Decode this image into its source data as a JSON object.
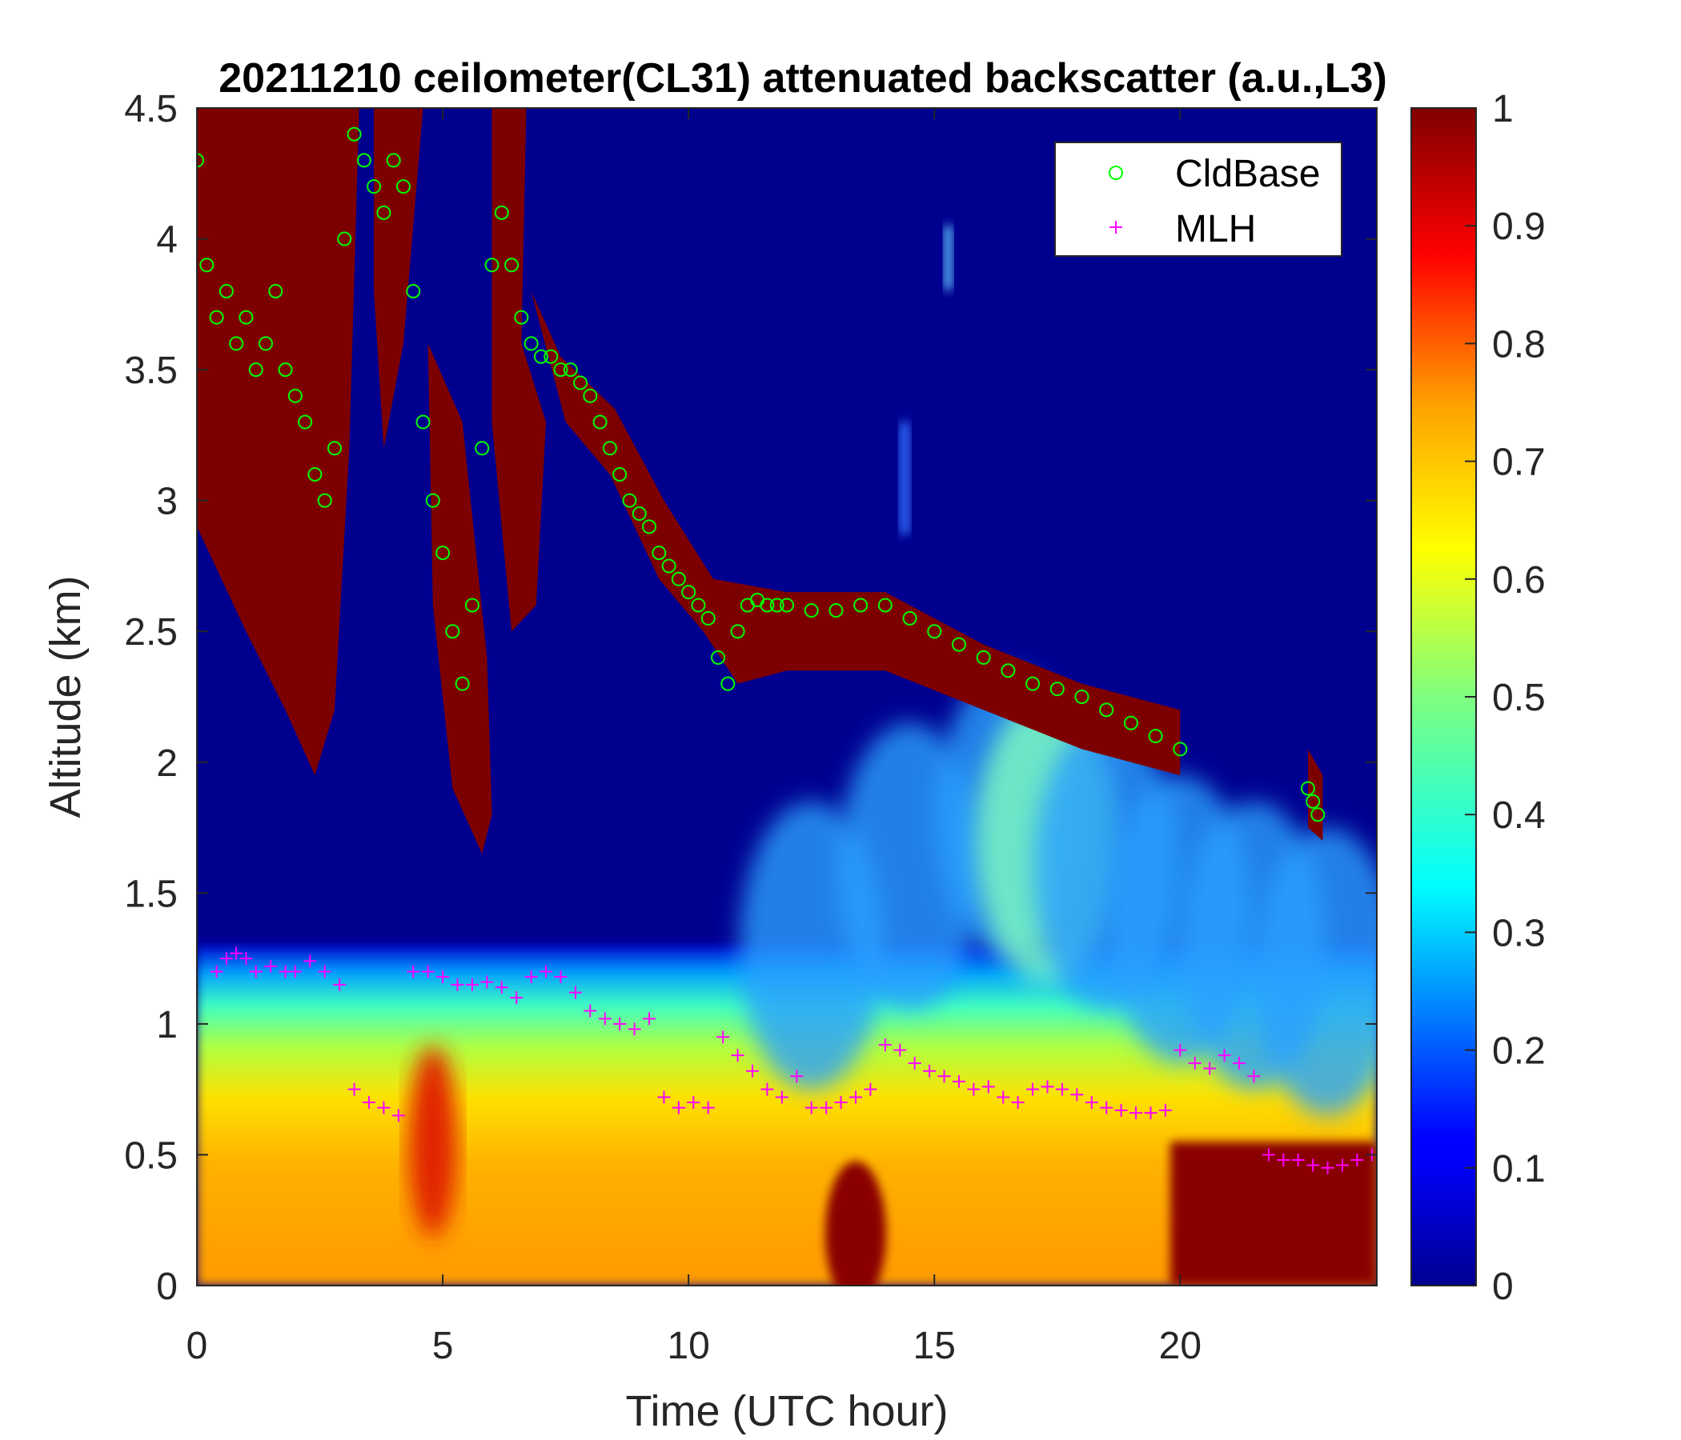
{
  "chart_data": {
    "type": "heatmap",
    "title": "20211210 ceilometer(CL31) attenuated backscatter (a.u.,L3)",
    "xlabel": "Time (UTC hour)",
    "ylabel": "Altitude (km)",
    "xlim": [
      0,
      24
    ],
    "ylim": [
      0,
      4.5
    ],
    "x_ticks": [
      0,
      5,
      10,
      15,
      20
    ],
    "x_tick_labels": [
      "0",
      "5",
      "10",
      "15",
      "20"
    ],
    "y_ticks": [
      0,
      0.5,
      1,
      1.5,
      2,
      2.5,
      3,
      3.5,
      4,
      4.5
    ],
    "y_tick_labels": [
      "0",
      "0.5",
      "1",
      "1.5",
      "2",
      "2.5",
      "3",
      "3.5",
      "4",
      "4.5"
    ],
    "colorbar": {
      "colormap": "jet",
      "range": [
        0,
        1
      ],
      "ticks": [
        0,
        0.1,
        0.2,
        0.3,
        0.4,
        0.5,
        0.6,
        0.7,
        0.8,
        0.9,
        1
      ],
      "tick_labels": [
        "0",
        "0.1",
        "0.2",
        "0.3",
        "0.4",
        "0.5",
        "0.6",
        "0.7",
        "0.8",
        "0.9",
        "1"
      ]
    },
    "background_value": 0,
    "legend": {
      "placement": "top-right",
      "entries": [
        {
          "label": "CldBase",
          "marker": "circle",
          "color": "#00ff00"
        },
        {
          "label": "MLH",
          "marker": "plus",
          "color": "#ff00ff"
        }
      ]
    },
    "series": [
      {
        "name": "CldBase",
        "marker": "circle",
        "color": "#00ff00",
        "x": [
          0,
          0.2,
          0.4,
          0.6,
          0.8,
          1.0,
          1.2,
          1.4,
          1.6,
          1.8,
          2.0,
          2.2,
          2.4,
          2.6,
          2.8,
          3.0,
          3.2,
          3.4,
          3.6,
          3.8,
          4.0,
          4.2,
          4.4,
          4.6,
          4.8,
          5.0,
          5.2,
          5.4,
          5.6,
          5.8,
          6.0,
          6.2,
          6.4,
          6.6,
          6.8,
          7.0,
          7.2,
          7.4,
          7.6,
          7.8,
          8.0,
          8.2,
          8.4,
          8.6,
          8.8,
          9.0,
          9.2,
          9.4,
          9.6,
          9.8,
          10.0,
          10.2,
          10.4,
          10.6,
          10.8,
          11.0,
          11.2,
          11.4,
          11.6,
          11.8,
          12.0,
          12.5,
          13.0,
          13.5,
          14.0,
          14.5,
          15.0,
          15.5,
          16.0,
          16.5,
          17.0,
          17.5,
          18.0,
          18.5,
          19.0,
          19.5,
          20.0,
          22.6,
          22.7,
          22.8
        ],
        "y": [
          4.3,
          3.9,
          3.7,
          3.8,
          3.6,
          3.7,
          3.5,
          3.6,
          3.8,
          3.5,
          3.4,
          3.3,
          3.1,
          3.0,
          3.2,
          4.0,
          4.4,
          4.3,
          4.2,
          4.1,
          4.3,
          4.2,
          3.8,
          3.3,
          3.0,
          2.8,
          2.5,
          2.3,
          2.6,
          3.2,
          3.9,
          4.1,
          3.9,
          3.7,
          3.6,
          3.55,
          3.55,
          3.5,
          3.5,
          3.45,
          3.4,
          3.3,
          3.2,
          3.1,
          3.0,
          2.95,
          2.9,
          2.8,
          2.75,
          2.7,
          2.65,
          2.6,
          2.55,
          2.4,
          2.3,
          2.5,
          2.6,
          2.62,
          2.6,
          2.6,
          2.6,
          2.58,
          2.58,
          2.6,
          2.6,
          2.55,
          2.5,
          2.45,
          2.4,
          2.35,
          2.3,
          2.28,
          2.25,
          2.2,
          2.15,
          2.1,
          2.05,
          1.9,
          1.85,
          1.8
        ]
      },
      {
        "name": "MLH",
        "marker": "plus",
        "color": "#ff00ff",
        "x": [
          0.4,
          0.6,
          0.8,
          1.0,
          1.2,
          1.5,
          1.8,
          2.0,
          2.3,
          2.6,
          2.9,
          3.2,
          3.5,
          3.8,
          4.1,
          4.4,
          4.7,
          5.0,
          5.3,
          5.6,
          5.9,
          6.2,
          6.5,
          6.8,
          7.1,
          7.4,
          7.7,
          8.0,
          8.3,
          8.6,
          8.9,
          9.2,
          9.5,
          9.8,
          10.1,
          10.4,
          10.7,
          11.0,
          11.3,
          11.6,
          11.9,
          12.2,
          12.5,
          12.8,
          13.1,
          13.4,
          13.7,
          14.0,
          14.3,
          14.6,
          14.9,
          15.2,
          15.5,
          15.8,
          16.1,
          16.4,
          16.7,
          17.0,
          17.3,
          17.6,
          17.9,
          18.2,
          18.5,
          18.8,
          19.1,
          19.4,
          19.7,
          20.0,
          20.3,
          20.6,
          20.9,
          21.2,
          21.5,
          21.8,
          22.1,
          22.4,
          22.7,
          23.0,
          23.3,
          23.6,
          23.9
        ],
        "y": [
          1.2,
          1.25,
          1.27,
          1.25,
          1.2,
          1.22,
          1.2,
          1.2,
          1.24,
          1.2,
          1.15,
          0.75,
          0.7,
          0.68,
          0.65,
          1.2,
          1.2,
          1.18,
          1.15,
          1.15,
          1.16,
          1.14,
          1.1,
          1.18,
          1.2,
          1.18,
          1.12,
          1.05,
          1.02,
          1.0,
          0.98,
          1.02,
          0.72,
          0.68,
          0.7,
          0.68,
          0.95,
          0.88,
          0.82,
          0.75,
          0.72,
          0.8,
          0.68,
          0.68,
          0.7,
          0.72,
          0.75,
          0.92,
          0.9,
          0.85,
          0.82,
          0.8,
          0.78,
          0.75,
          0.76,
          0.72,
          0.7,
          0.75,
          0.76,
          0.75,
          0.73,
          0.7,
          0.68,
          0.67,
          0.66,
          0.66,
          0.67,
          0.9,
          0.85,
          0.83,
          0.88,
          0.85,
          0.8,
          0.5,
          0.48,
          0.48,
          0.46,
          0.45,
          0.46,
          0.48,
          0.5
        ]
      }
    ]
  }
}
